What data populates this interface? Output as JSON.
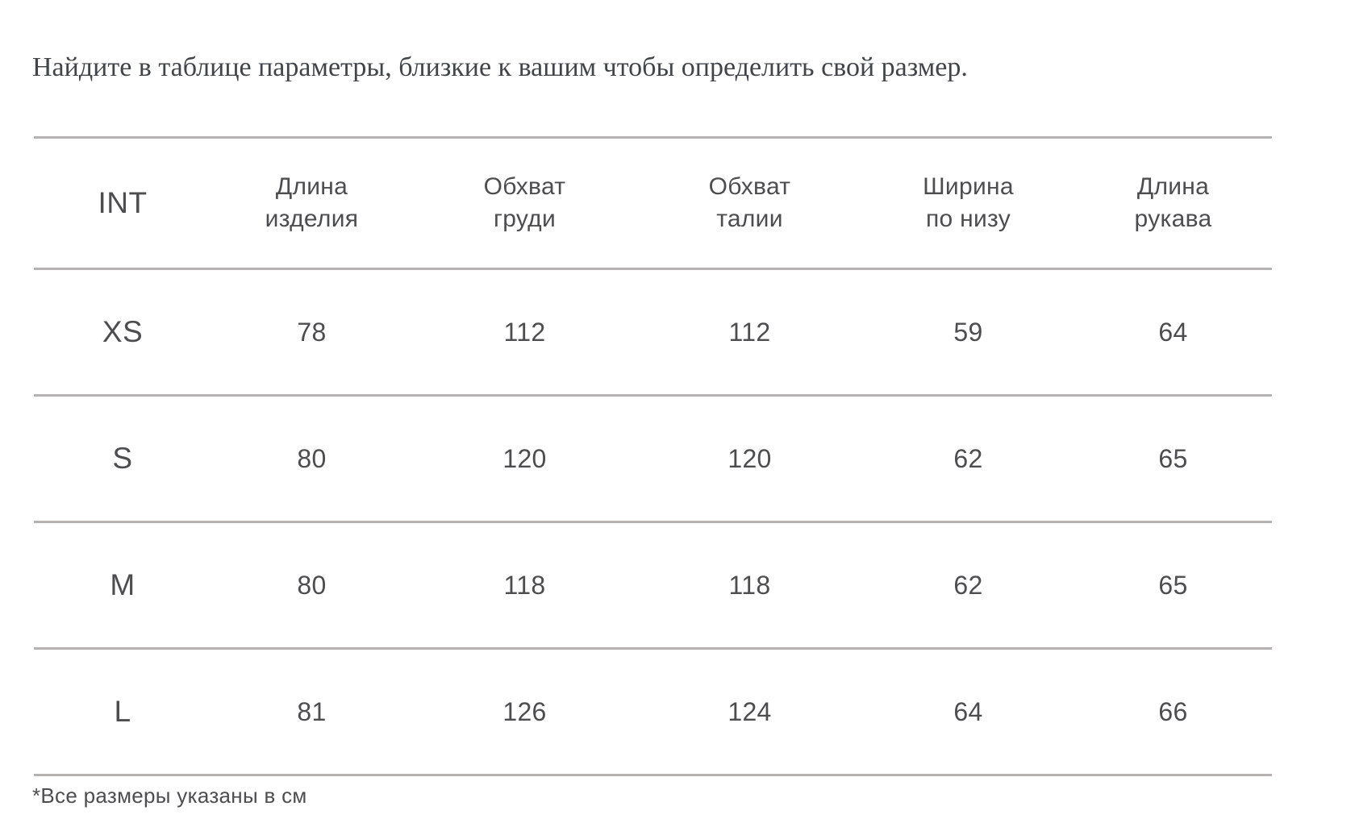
{
  "title": "Найдите в таблице параметры, близкие к вашим чтобы определить свой размер.",
  "table": {
    "columns": [
      "INT",
      "Длина\nизделия",
      "Обхват\nгруди",
      "Обхват\nталии",
      "Ширина\nпо низу",
      "Длина\nрукава"
    ],
    "rows": [
      {
        "size": "XS",
        "values": [
          "78",
          "112",
          "112",
          "59",
          "64"
        ]
      },
      {
        "size": "S",
        "values": [
          "80",
          "120",
          "120",
          "62",
          "65"
        ]
      },
      {
        "size": "M",
        "values": [
          "80",
          "118",
          "118",
          "62",
          "65"
        ]
      },
      {
        "size": "L",
        "values": [
          "81",
          "126",
          "124",
          "64",
          "66"
        ]
      }
    ],
    "units_note": "*Все размеры указаны в см"
  },
  "colors": {
    "line": "#b6b2b2",
    "title_text": "#41454a",
    "table_text": "#4c4d4f"
  }
}
